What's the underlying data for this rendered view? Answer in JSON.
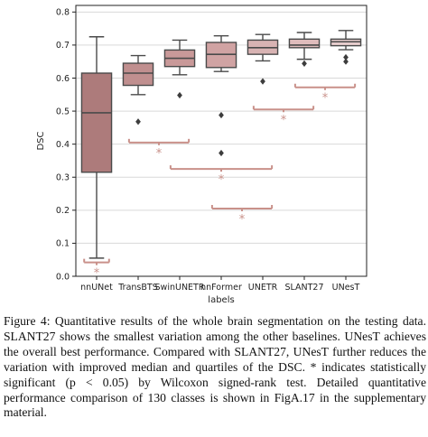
{
  "chart_data": {
    "type": "box",
    "xlabel": "labels",
    "ylabel": "DSC",
    "ylim": [
      0.0,
      0.82
    ],
    "yticks": [
      0.0,
      0.1,
      0.2,
      0.3,
      0.4,
      0.5,
      0.6,
      0.7,
      0.8
    ],
    "ytick_labels": [
      "0.0",
      "0.1",
      "0.2",
      "0.3",
      "0.4",
      "0.5",
      "0.6",
      "0.7",
      "0.8"
    ],
    "grid": "horizontal",
    "categories": [
      "nnUNet",
      "TransBTS",
      "SwinUNETR",
      "nnFormer",
      "UNETR",
      "SLANT27",
      "UNesT"
    ],
    "boxes": [
      {
        "name": "nnUNet",
        "whislo": 0.055,
        "q1": 0.315,
        "med": 0.495,
        "q3": 0.615,
        "whishi": 0.725,
        "fliers": [],
        "color": "#ad7b7b"
      },
      {
        "name": "TransBTS",
        "whislo": 0.55,
        "q1": 0.578,
        "med": 0.615,
        "q3": 0.645,
        "whishi": 0.668,
        "fliers": [
          0.468
        ],
        "color": "#c08f8f"
      },
      {
        "name": "SwinUNETR",
        "whislo": 0.61,
        "q1": 0.635,
        "med": 0.66,
        "q3": 0.685,
        "whishi": 0.715,
        "fliers": [
          0.548
        ],
        "color": "#c99999"
      },
      {
        "name": "nnFormer",
        "whislo": 0.62,
        "q1": 0.632,
        "med": 0.672,
        "q3": 0.708,
        "whishi": 0.728,
        "fliers": [
          0.488,
          0.373
        ],
        "color": "#d0a3a3"
      },
      {
        "name": "UNETR",
        "whislo": 0.652,
        "q1": 0.672,
        "med": 0.692,
        "q3": 0.715,
        "whishi": 0.732,
        "fliers": [
          0.59
        ],
        "color": "#d8b3b3"
      },
      {
        "name": "SLANT27",
        "whislo": 0.657,
        "q1": 0.692,
        "med": 0.7,
        "q3": 0.718,
        "whishi": 0.738,
        "fliers": [
          0.644
        ],
        "color": "#dfbcbc"
      },
      {
        "name": "UNesT",
        "whislo": 0.686,
        "q1": 0.698,
        "med": 0.71,
        "q3": 0.718,
        "whishi": 0.744,
        "fliers": [
          0.663,
          0.65
        ],
        "color": "#e6cccc"
      }
    ],
    "significance": [
      {
        "label": "*",
        "between": [
          "nnUNet",
          "nnUNet"
        ],
        "level": 0.042
      },
      {
        "label": "*",
        "between": [
          "TransBTS",
          "SwinUNETR"
        ],
        "level": 0.405
      },
      {
        "label": "*",
        "between": [
          "SwinUNETR",
          "UNETR"
        ],
        "level": 0.325
      },
      {
        "label": "*",
        "between": [
          "nnFormer",
          "UNETR"
        ],
        "level": 0.205
      },
      {
        "label": "*",
        "between": [
          "UNETR",
          "SLANT27"
        ],
        "level": 0.505
      },
      {
        "label": "*",
        "between": [
          "SLANT27",
          "UNesT"
        ],
        "level": 0.572
      }
    ],
    "bracket_color": "#c9918a"
  },
  "caption": "Figure 4: Quantitative results of the whole brain segmentation on the testing data. SLANT27 shows the smallest variation among the other baselines. UNesT achieves the overall best performance. Compared with SLANT27, UNesT further reduces the variation with improved median and quartiles of the DSC. * indicates statistically significant (p < 0.05) by Wilcoxon signed-rank test. Detailed quantitative performance comparison of 130 classes is shown in FigA.17 in the supplementary material."
}
